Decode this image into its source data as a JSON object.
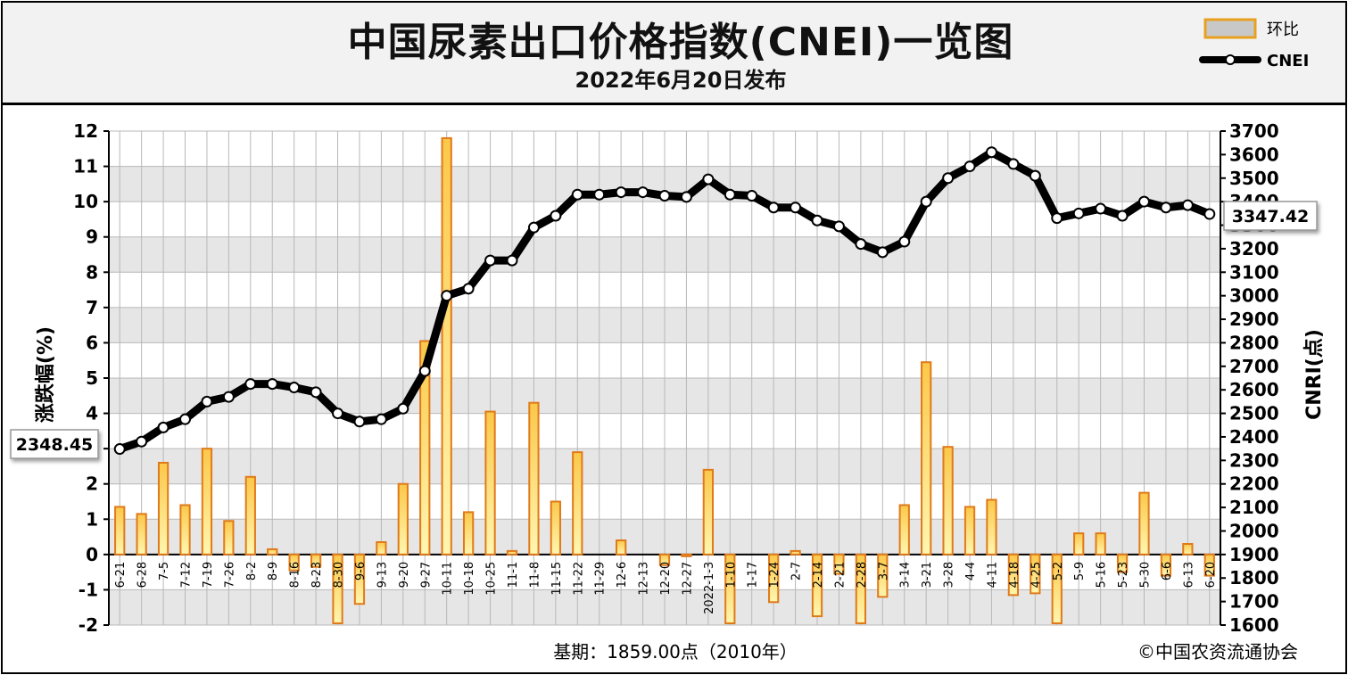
{
  "title": "中国尿素出口价格指数(CNEI)一览图",
  "subtitle": "2022年6月20日发布",
  "legend": {
    "bar_label": "环比",
    "line_label": "CNEI"
  },
  "footer": {
    "base": "基期：1859.00点（2010年）",
    "copyright": "©中国农资流通协会"
  },
  "colors": {
    "bar_fill_top": "#fbc84a",
    "bar_fill_bottom": "#fff6b0",
    "bar_stroke": "#e07a1a",
    "line": "#000000",
    "grid": "#b8b8b8",
    "plot_band": "#e6e6e6"
  },
  "chart_data": {
    "type": "bar+line",
    "title": "中国尿素出口价格指数(CNEI)一览图",
    "ylabel": "涨跌幅(%)",
    "y2label": "CNRI(点)",
    "ylim": [
      -2,
      12
    ],
    "y2lim": [
      1600,
      3700
    ],
    "y_ticks": [
      -2,
      -1,
      0,
      1,
      2,
      3,
      4,
      5,
      6,
      7,
      8,
      9,
      10,
      11,
      12
    ],
    "y2_ticks": [
      1600,
      1700,
      1800,
      1900,
      2000,
      2100,
      2200,
      2300,
      2400,
      2500,
      2600,
      2700,
      2800,
      2900,
      3000,
      3100,
      3200,
      3300,
      3400,
      3500,
      3600,
      3700
    ],
    "grid": true,
    "legend_position": "top-right",
    "categories": [
      "6-21",
      "6-28",
      "7-5",
      "7-12",
      "7-19",
      "7-26",
      "8-2",
      "8-9",
      "8-16",
      "8-23",
      "8-30",
      "9-6",
      "9-13",
      "9-20",
      "9-27",
      "10-11",
      "10-18",
      "10-25",
      "11-1",
      "11-8",
      "11-15",
      "11-22",
      "11-29",
      "12-6",
      "12-13",
      "12-20",
      "12-27",
      "2022-1-3",
      "1-10",
      "1-17",
      "1-24",
      "2-7",
      "2-14",
      "2-21",
      "2-28",
      "3-7",
      "3-14",
      "3-21",
      "3-28",
      "4-4",
      "4-11",
      "4-18",
      "4-25",
      "5-2",
      "5-9",
      "5-16",
      "5-23",
      "5-30",
      "6-6",
      "6-13",
      "6-20"
    ],
    "series": [
      {
        "name": "环比",
        "type": "bar",
        "axis": "left",
        "values": [
          1.35,
          1.15,
          2.6,
          1.4,
          3.0,
          0.95,
          2.2,
          0.15,
          -0.45,
          -0.35,
          -1.95,
          -1.4,
          0.35,
          2.0,
          6.05,
          11.8,
          1.2,
          4.05,
          0.1,
          4.3,
          1.5,
          2.9,
          0.0,
          0.4,
          0.0,
          -0.3,
          -0.05,
          2.4,
          -1.95,
          0.0,
          -1.35,
          0.1,
          -1.75,
          -0.55,
          -1.95,
          -1.2,
          1.4,
          5.45,
          3.05,
          1.35,
          1.55,
          -1.15,
          -1.1,
          -1.95,
          0.6,
          0.6,
          -0.5,
          1.75,
          -0.6,
          0.3,
          -0.6
        ]
      },
      {
        "name": "CNEI",
        "type": "line",
        "axis": "right",
        "values": [
          2348.45,
          2380,
          2440,
          2475,
          2550,
          2570,
          2625,
          2625,
          2610,
          2590,
          2500,
          2465,
          2475,
          2520,
          2680,
          3000,
          3030,
          3150,
          3150,
          3290,
          3340,
          3430,
          3430,
          3440,
          3440,
          3425,
          3420,
          3495,
          3430,
          3425,
          3375,
          3375,
          3320,
          3295,
          3220,
          3185,
          3230,
          3400,
          3500,
          3550,
          3610,
          3560,
          3510,
          3330,
          3350,
          3370,
          3340,
          3400,
          3375,
          3385,
          3347.42
        ]
      }
    ],
    "annotations": {
      "start_value": "2348.45",
      "end_value": "3347.42"
    }
  }
}
